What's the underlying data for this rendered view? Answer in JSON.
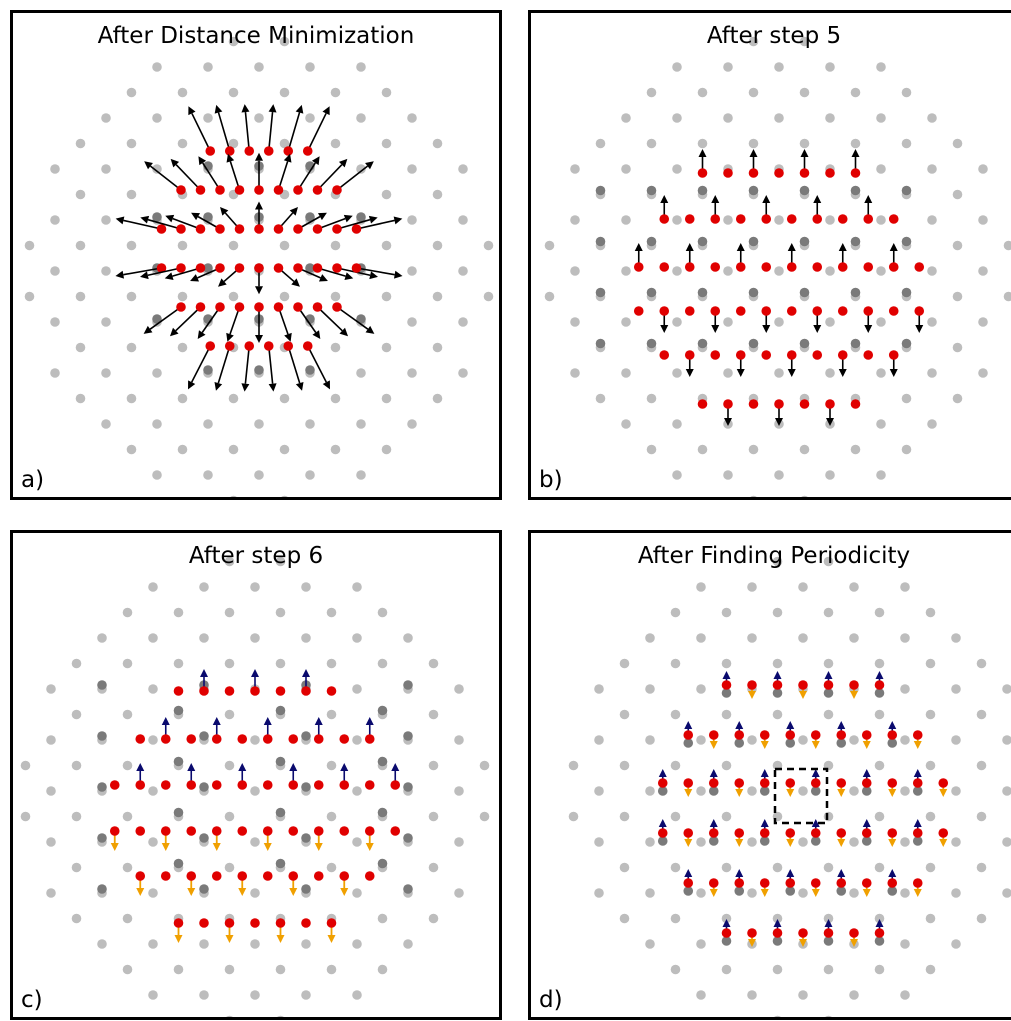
{
  "panels": [
    {
      "id": "a",
      "title": "After Distance Minimization",
      "label": "a)"
    },
    {
      "id": "b",
      "title": "After step 5",
      "label": "b)"
    },
    {
      "id": "c",
      "title": "After step 6",
      "label": "c)"
    },
    {
      "id": "d",
      "title": "After Finding Periodicity",
      "label": "d)"
    }
  ],
  "colors": {
    "reference_atom": "#bdbdbd",
    "dark_reference_atom": "#7a7a7a",
    "displaced_atom": "#e00000",
    "arrow_black": "#000000",
    "arrow_blue": "#0a0a6e",
    "arrow_orange": "#f0a000",
    "unit_cell_box": "#000000"
  }
}
